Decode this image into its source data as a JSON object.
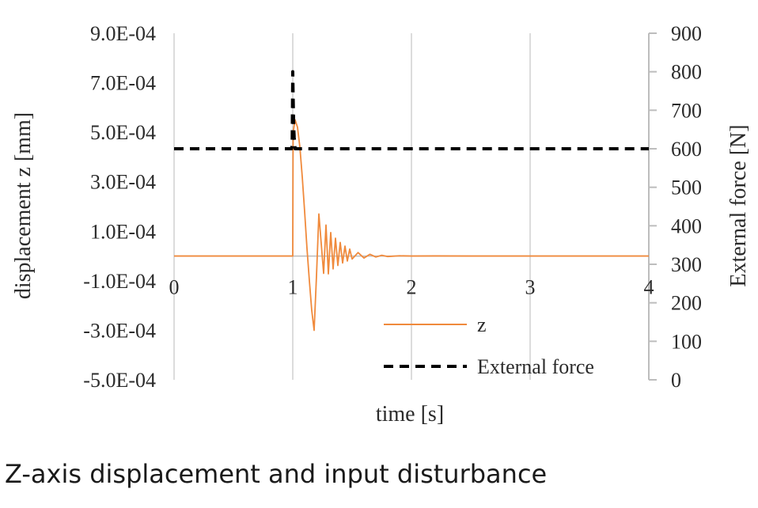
{
  "caption": "Z-axis displacement and input disturbance",
  "chart_data": {
    "type": "line",
    "xlabel": "time [s]",
    "ylabel": "displacement z [mm]",
    "y2label": "External force [N]",
    "xlim": [
      0,
      4
    ],
    "ylim": [
      -0.0005,
      0.0009
    ],
    "y2lim": [
      0,
      900
    ],
    "xticks": [
      "0",
      "1",
      "2",
      "3",
      "4"
    ],
    "yticks": [
      "9.0E-04",
      "7.0E-04",
      "5.0E-04",
      "3.0E-04",
      "1.0E-04",
      "-1.0E-04",
      "-3.0E-04",
      "-5.0E-04"
    ],
    "y2ticks": [
      "900",
      "800",
      "700",
      "600",
      "500",
      "400",
      "300",
      "200",
      "100",
      "0"
    ],
    "grid": "vertical",
    "legend_position": "bottom-right",
    "colors": {
      "z": "#f08a3c",
      "force": "#000000",
      "grid": "#d0d0d0",
      "axis": "#bdbdbd"
    },
    "series": [
      {
        "name": "z",
        "axis": "left",
        "style": "solid",
        "x": [
          0,
          1.0,
          1.003,
          1.02,
          1.04,
          1.06,
          1.08,
          1.1,
          1.12,
          1.14,
          1.16,
          1.18,
          1.2,
          1.22,
          1.24,
          1.26,
          1.28,
          1.3,
          1.32,
          1.34,
          1.36,
          1.38,
          1.4,
          1.42,
          1.44,
          1.46,
          1.48,
          1.5,
          1.55,
          1.6,
          1.65,
          1.7,
          1.75,
          1.8,
          1.9,
          2.0,
          2.2,
          2.5,
          4.0
        ],
        "y": [
          0,
          0,
          0.0005,
          0.00055,
          0.00052,
          0.00044,
          0.00032,
          0.00018,
          3e-05,
          -0.0001,
          -0.00022,
          -0.0003,
          -8e-05,
          0.00017,
          5e-05,
          -7e-05,
          0.000125,
          -7.2e-05,
          9.5e-05,
          -5.2e-05,
          7.2e-05,
          -3.8e-05,
          5.5e-05,
          -2.8e-05,
          4e-05,
          -2e-05,
          2.8e-05,
          -1.2e-05,
          1.4e-05,
          -8e-06,
          7e-06,
          -4e-06,
          3e-06,
          -2e-06,
          1e-06,
          0,
          5e-07,
          0,
          0
        ]
      },
      {
        "name": "External force",
        "axis": "right",
        "style": "dashed",
        "x": [
          0,
          0.99,
          0.995,
          1.0,
          1.003,
          1.006,
          1.009,
          1.012,
          1.015,
          1.02,
          4.0
        ],
        "y": [
          600,
          600,
          610,
          800,
          740,
          690,
          650,
          630,
          620,
          600,
          600
        ]
      }
    ]
  }
}
